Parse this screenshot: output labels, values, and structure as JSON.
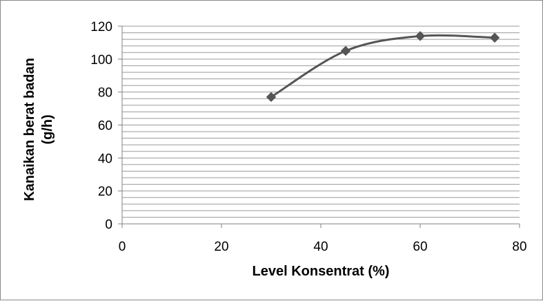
{
  "chart_data": {
    "type": "line",
    "title": "",
    "xlabel": "Level Konsentrat (%)",
    "ylabel_lines": [
      "Kanaikan berat badan",
      "(g/h)"
    ],
    "xlim": [
      0,
      80
    ],
    "ylim": [
      0,
      120
    ],
    "x_ticks": [
      0,
      20,
      40,
      60,
      80
    ],
    "y_ticks": [
      0,
      20,
      40,
      60,
      80,
      100,
      120
    ],
    "grid": "horizontal minor lines every 4 units",
    "line_style": "smoothed",
    "marker": "diamond",
    "series": [
      {
        "x": [
          30,
          45,
          60,
          75
        ],
        "values": [
          77,
          105,
          114,
          113
        ]
      }
    ],
    "colors": {
      "series": "#555555",
      "grid": "#9a9a9a",
      "axis": "#808080"
    }
  }
}
